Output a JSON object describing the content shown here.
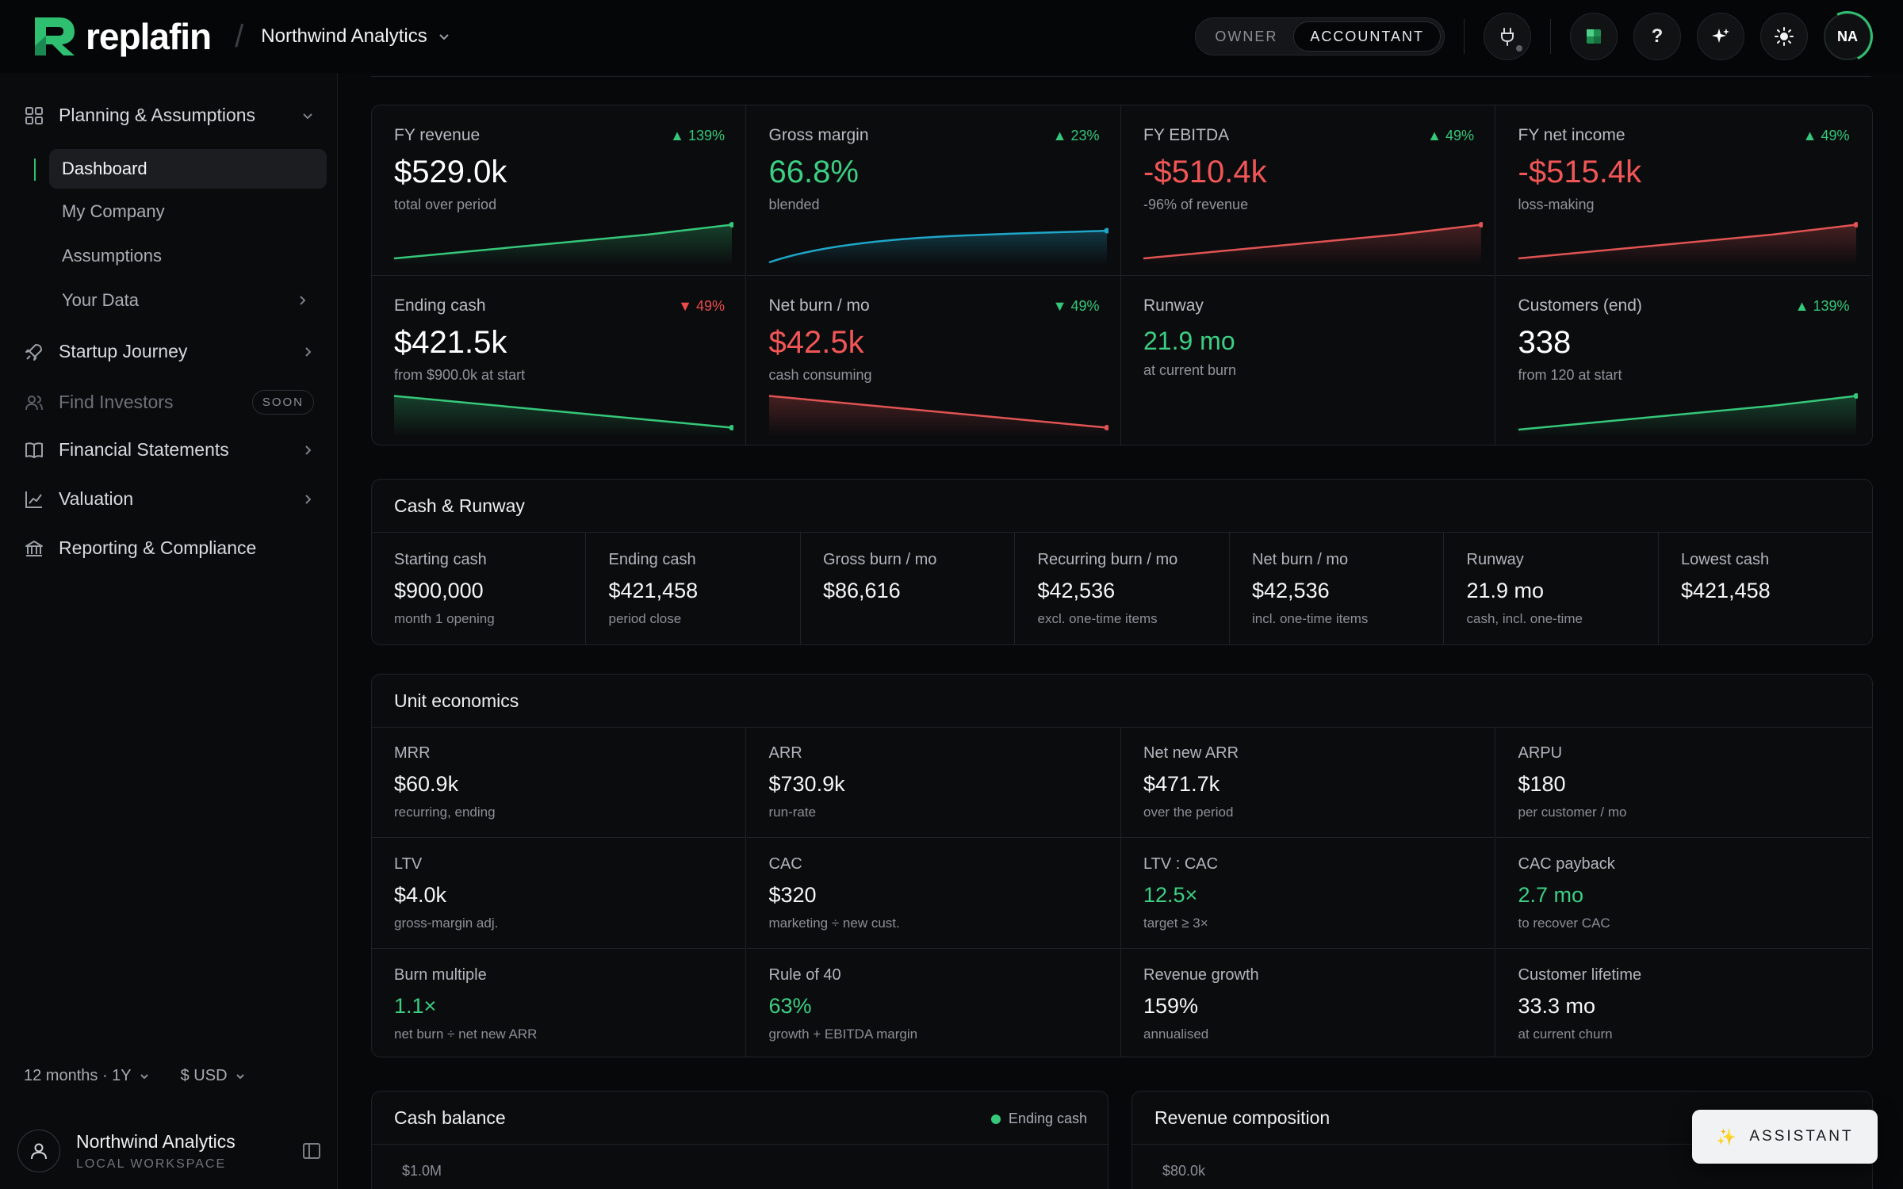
{
  "brand": {
    "name": "replafin",
    "accent": "#2fbf71"
  },
  "header": {
    "company": "Northwind Analytics",
    "roles": [
      "OWNER",
      "ACCOUNTANT"
    ],
    "active_role": "ACCOUNTANT",
    "avatar_initials": "NA",
    "icons": [
      "plug-icon",
      "grid-icon",
      "help-icon",
      "sparkle-icon",
      "sun-icon"
    ]
  },
  "sidebar": {
    "planning": {
      "label": "Planning & Assumptions",
      "items": [
        {
          "label": "Dashboard",
          "active": true
        },
        {
          "label": "My Company"
        },
        {
          "label": "Assumptions"
        },
        {
          "label": "Your Data"
        }
      ]
    },
    "groups": [
      {
        "label": "Startup Journey"
      },
      {
        "label": "Find Investors",
        "badge": "SOON"
      },
      {
        "label": "Financial Statements"
      },
      {
        "label": "Valuation"
      },
      {
        "label": "Reporting & Compliance"
      }
    ],
    "period": "12 months · 1Y",
    "currency": "$ USD",
    "workspace": {
      "name": "Northwind Analytics",
      "sub": "LOCAL WORKSPACE"
    }
  },
  "kpis": [
    {
      "label": "FY revenue",
      "delta": "▲ 139%",
      "dir": "up",
      "value": "$529.0k",
      "tone": "white",
      "note": "total over period",
      "spark": [
        10,
        30,
        50,
        70,
        95
      ],
      "spark_color": "#35c77a"
    },
    {
      "label": "Gross margin",
      "delta": "▲ 23%",
      "dir": "up",
      "value": "66.8%",
      "tone": "green",
      "note": "blended",
      "spark": [
        20,
        60,
        78,
        88,
        94
      ],
      "spark_color": "#1fa6c8"
    },
    {
      "label": "FY EBITDA",
      "delta": "▲ 49%",
      "dir": "up",
      "value": "-$510.4k",
      "tone": "red",
      "note": "-96% of revenue",
      "spark": [
        10,
        30,
        50,
        70,
        95
      ],
      "spark_color": "#e05353"
    },
    {
      "label": "FY net income",
      "delta": "▲ 49%",
      "dir": "up",
      "value": "-$515.4k",
      "tone": "red",
      "note": "loss-making",
      "spark": [
        10,
        30,
        50,
        70,
        95
      ],
      "spark_color": "#e05353"
    },
    {
      "label": "Ending cash",
      "delta": "▼ 49%",
      "dir": "down",
      "value": "$421.5k",
      "tone": "white",
      "note": "from $900.0k at start",
      "spark": [
        95,
        75,
        55,
        35,
        15
      ],
      "spark_color": "#35c77a"
    },
    {
      "label": "Net burn / mo",
      "delta": "▼ 49%",
      "dir": "up",
      "value": "$42.5k",
      "tone": "red",
      "note": "cash consuming",
      "spark": [
        95,
        75,
        55,
        35,
        15
      ],
      "spark_color": "#e05353"
    },
    {
      "label": "Runway",
      "delta": "",
      "dir": "up",
      "value": "21.9 mo",
      "tone": "greensm",
      "note": "at current burn",
      "spark": [],
      "spark_color": "#35c77a"
    },
    {
      "label": "Customers (end)",
      "delta": "▲ 139%",
      "dir": "up",
      "value": "338",
      "tone": "white",
      "note": "from 120 at start",
      "spark": [
        10,
        30,
        50,
        70,
        95
      ],
      "spark_color": "#35c77a"
    }
  ],
  "cash_runway": {
    "title": "Cash & Runway",
    "cells": [
      {
        "label": "Starting cash",
        "value": "$900,000",
        "note": "month 1 opening"
      },
      {
        "label": "Ending cash",
        "value": "$421,458",
        "note": "period close"
      },
      {
        "label": "Gross burn / mo",
        "value": "$86,616",
        "note": ""
      },
      {
        "label": "Recurring burn / mo",
        "value": "$42,536",
        "note": "excl. one-time items"
      },
      {
        "label": "Net burn / mo",
        "value": "$42,536",
        "note": "incl. one-time items"
      },
      {
        "label": "Runway",
        "value": "21.9 mo",
        "note": "cash, incl. one-time"
      },
      {
        "label": "Lowest cash",
        "value": "$421,458",
        "note": ""
      }
    ]
  },
  "unit_economics": {
    "title": "Unit economics",
    "cells": [
      {
        "label": "MRR",
        "value": "$60.9k",
        "note": "recurring, ending",
        "tone": "white"
      },
      {
        "label": "ARR",
        "value": "$730.9k",
        "note": "run-rate",
        "tone": "white"
      },
      {
        "label": "Net new ARR",
        "value": "$471.7k",
        "note": "over the period",
        "tone": "white"
      },
      {
        "label": "ARPU",
        "value": "$180",
        "note": "per customer / mo",
        "tone": "white"
      },
      {
        "label": "LTV",
        "value": "$4.0k",
        "note": "gross-margin adj.",
        "tone": "white"
      },
      {
        "label": "CAC",
        "value": "$320",
        "note": "marketing ÷ new cust.",
        "tone": "white"
      },
      {
        "label": "LTV : CAC",
        "value": "12.5×",
        "note": "target ≥ 3×",
        "tone": "green"
      },
      {
        "label": "CAC payback",
        "value": "2.7 mo",
        "note": "to recover CAC",
        "tone": "green"
      },
      {
        "label": "Burn multiple",
        "value": "1.1×",
        "note": "net burn ÷ net new ARR",
        "tone": "green"
      },
      {
        "label": "Rule of 40",
        "value": "63%",
        "note": "growth + EBITDA margin",
        "tone": "green"
      },
      {
        "label": "Revenue growth",
        "value": "159%",
        "note": "annualised",
        "tone": "white"
      },
      {
        "label": "Customer lifetime",
        "value": "33.3 mo",
        "note": "at current churn",
        "tone": "white"
      }
    ]
  },
  "charts": {
    "cash_balance": {
      "title": "Cash balance",
      "legend": "Ending cash",
      "axis_top": "$1.0M"
    },
    "revenue_composition": {
      "title": "Revenue composition",
      "axis_top": "$80.0k"
    }
  },
  "assistant_label": "ASSISTANT"
}
